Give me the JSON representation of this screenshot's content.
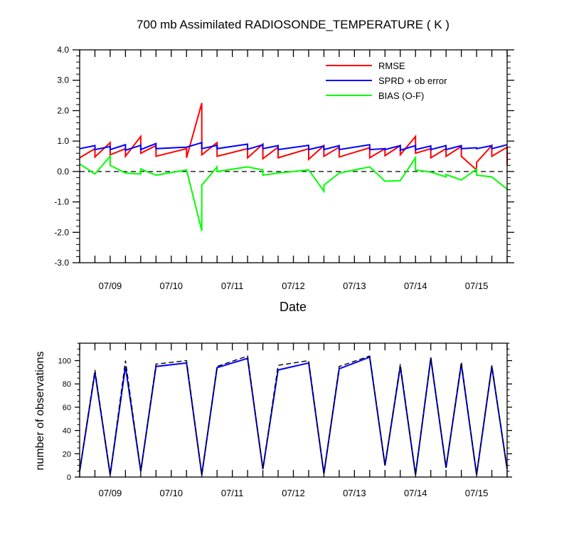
{
  "chart_data": [
    {
      "type": "line",
      "title": "700 mb Assimilated RADIOSONDE_TEMPERATURE ( K )",
      "xlabel": "Date",
      "ylabel": "",
      "x_tick_labels": [
        "07/09",
        "07/10",
        "07/11",
        "07/12",
        "07/13",
        "07/14",
        "07/15"
      ],
      "x_tick_positions": [
        1,
        3,
        5,
        7,
        9,
        11,
        13
      ],
      "xlim": [
        0,
        14
      ],
      "ylim": [
        -3,
        4
      ],
      "y_tick_values": [
        4,
        3,
        2,
        1,
        0,
        -1,
        -2,
        -3
      ],
      "y_tick_labels": [
        "4.0",
        "3.0",
        "2.0",
        "1.0",
        "0.0",
        "-1.0",
        "-2.0",
        "-3.0"
      ],
      "legend_position": "top-right",
      "zero_line": "dashed",
      "series": [
        {
          "name": "RMSE",
          "color": "#ff0000",
          "points": [
            [
              0,
              0.45
            ],
            [
              0.5,
              0.75
            ],
            [
              0.5,
              0.48
            ],
            [
              1,
              0.95
            ],
            [
              1,
              0.55
            ],
            [
              1.5,
              0.75
            ],
            [
              1.5,
              0.5
            ],
            [
              2,
              1.15
            ],
            [
              2,
              0.6
            ],
            [
              2.5,
              0.85
            ],
            [
              2.5,
              0.5
            ],
            [
              3.5,
              0.75
            ],
            [
              3.5,
              0.45
            ],
            [
              4,
              2.25
            ],
            [
              4,
              0.55
            ],
            [
              4.5,
              0.95
            ],
            [
              4.5,
              0.5
            ],
            [
              5.5,
              0.75
            ],
            [
              5.5,
              0.45
            ],
            [
              6,
              0.9
            ],
            [
              6,
              0.42
            ],
            [
              6.5,
              0.8
            ],
            [
              6.5,
              0.45
            ],
            [
              7.5,
              0.75
            ],
            [
              7.5,
              0.4
            ],
            [
              8,
              0.85
            ],
            [
              8,
              0.5
            ],
            [
              8.5,
              0.8
            ],
            [
              8.5,
              0.48
            ],
            [
              9.5,
              0.78
            ],
            [
              9.5,
              0.45
            ],
            [
              10,
              0.75
            ],
            [
              10,
              0.52
            ],
            [
              10.5,
              0.85
            ],
            [
              10.5,
              0.55
            ],
            [
              11,
              1.15
            ],
            [
              11,
              0.6
            ],
            [
              11.5,
              0.75
            ],
            [
              11.5,
              0.45
            ],
            [
              12,
              0.75
            ],
            [
              12,
              0.5
            ],
            [
              12.5,
              0.82
            ],
            [
              12.5,
              0.5
            ],
            [
              13,
              0.05
            ],
            [
              13,
              0.3
            ],
            [
              13.5,
              0.85
            ],
            [
              13.5,
              0.5
            ],
            [
              14,
              0.8
            ],
            [
              14,
              0.2
            ]
          ]
        },
        {
          "name": "SPRD + ob error",
          "color": "#0000ff",
          "points": [
            [
              0,
              0.75
            ],
            [
              0.5,
              0.85
            ],
            [
              0.5,
              0.72
            ],
            [
              1,
              0.82
            ],
            [
              1,
              0.72
            ],
            [
              1.5,
              0.88
            ],
            [
              1.5,
              0.7
            ],
            [
              2,
              0.86
            ],
            [
              2,
              0.72
            ],
            [
              2.5,
              0.92
            ],
            [
              2.5,
              0.75
            ],
            [
              3.5,
              0.8
            ],
            [
              4,
              0.95
            ],
            [
              4,
              0.75
            ],
            [
              4.5,
              0.86
            ],
            [
              4.5,
              0.75
            ],
            [
              5.5,
              0.9
            ],
            [
              5.5,
              0.73
            ],
            [
              6,
              0.88
            ],
            [
              6,
              0.75
            ],
            [
              6.5,
              0.85
            ],
            [
              6.5,
              0.72
            ],
            [
              7.5,
              0.86
            ],
            [
              7.5,
              0.72
            ],
            [
              8,
              0.84
            ],
            [
              8,
              0.72
            ],
            [
              8.5,
              0.85
            ],
            [
              8.5,
              0.72
            ],
            [
              9.5,
              0.88
            ],
            [
              9.5,
              0.72
            ],
            [
              10,
              0.75
            ],
            [
              10,
              0.72
            ],
            [
              10.5,
              0.85
            ],
            [
              10.5,
              0.7
            ],
            [
              11,
              0.85
            ],
            [
              11,
              0.72
            ],
            [
              11.5,
              0.84
            ],
            [
              11.5,
              0.72
            ],
            [
              12,
              0.85
            ],
            [
              12,
              0.72
            ],
            [
              12.5,
              0.85
            ],
            [
              12.5,
              0.75
            ],
            [
              13,
              0.78
            ],
            [
              13,
              0.75
            ],
            [
              13.5,
              0.85
            ],
            [
              13.5,
              0.75
            ],
            [
              14,
              0.88
            ]
          ]
        },
        {
          "name": "BIAS (O-F)",
          "color": "#00ff00",
          "points": [
            [
              0,
              0.25
            ],
            [
              0.5,
              -0.08
            ],
            [
              1,
              0.5
            ],
            [
              1,
              0.2
            ],
            [
              1.5,
              -0.05
            ],
            [
              2,
              -0.08
            ],
            [
              2,
              0.08
            ],
            [
              2.5,
              -0.12
            ],
            [
              3.5,
              0.05
            ],
            [
              4,
              -1.95
            ],
            [
              4,
              -0.45
            ],
            [
              4.5,
              0.15
            ],
            [
              4.5,
              0
            ],
            [
              5.5,
              0.15
            ],
            [
              6,
              0.05
            ],
            [
              6,
              -0.12
            ],
            [
              6.5,
              -0.05
            ],
            [
              7.5,
              0.05
            ],
            [
              8,
              -0.65
            ],
            [
              8,
              -0.45
            ],
            [
              8.5,
              -0.05
            ],
            [
              9.5,
              0.15
            ],
            [
              10,
              -0.32
            ],
            [
              10.5,
              -0.3
            ],
            [
              11,
              0.45
            ],
            [
              11,
              0.05
            ],
            [
              11.5,
              -0.02
            ],
            [
              12,
              -0.18
            ],
            [
              12,
              -0.1
            ],
            [
              12.5,
              -0.28
            ],
            [
              13,
              0.08
            ],
            [
              13,
              -0.12
            ],
            [
              13.5,
              -0.18
            ],
            [
              14,
              -0.58
            ]
          ]
        }
      ]
    },
    {
      "type": "line",
      "title": "",
      "xlabel": "",
      "ylabel": "number of observations",
      "x_tick_labels": [
        "07/09",
        "07/10",
        "07/11",
        "07/12",
        "07/13",
        "07/14",
        "07/15"
      ],
      "x_tick_positions": [
        1,
        3,
        5,
        7,
        9,
        11,
        13
      ],
      "xlim": [
        0,
        14
      ],
      "ylim": [
        0,
        115
      ],
      "y_tick_values": [
        0,
        20,
        40,
        60,
        80,
        100
      ],
      "y_tick_labels": [
        "0",
        "20",
        "40",
        "60",
        "80",
        "100"
      ],
      "series": [
        {
          "color": "#0000ff",
          "style": "solid",
          "points": [
            [
              0,
              5
            ],
            [
              0.5,
              90
            ],
            [
              1,
              2
            ],
            [
              1.5,
              95
            ],
            [
              2,
              5
            ],
            [
              2.5,
              95
            ],
            [
              3.5,
              98
            ],
            [
              4,
              2
            ],
            [
              4.5,
              94
            ],
            [
              5.5,
              102
            ],
            [
              6,
              7
            ],
            [
              6.5,
              92
            ],
            [
              7.5,
              98
            ],
            [
              8,
              3
            ],
            [
              8.5,
              93
            ],
            [
              9.5,
              103
            ],
            [
              10,
              10
            ],
            [
              10.5,
              95
            ],
            [
              11,
              2
            ],
            [
              11.5,
              102
            ],
            [
              12,
              8
            ],
            [
              12.5,
              97
            ],
            [
              13,
              2
            ],
            [
              13.5,
              95
            ],
            [
              14,
              7
            ]
          ]
        },
        {
          "color": "#000000",
          "style": "dashed",
          "points": [
            [
              0,
              5
            ],
            [
              0.5,
              92
            ],
            [
              1,
              2
            ],
            [
              1.5,
              100
            ],
            [
              2,
              5
            ],
            [
              2.5,
              97
            ],
            [
              3.5,
              100
            ],
            [
              4,
              2
            ],
            [
              4.5,
              95
            ],
            [
              5.5,
              104
            ],
            [
              6,
              7
            ],
            [
              6.5,
              96
            ],
            [
              7.5,
              100
            ],
            [
              8,
              3
            ],
            [
              8.5,
              95
            ],
            [
              9.5,
              104
            ],
            [
              10,
              10
            ],
            [
              10.5,
              97
            ],
            [
              11,
              2
            ],
            [
              11.5,
              103
            ],
            [
              12,
              8
            ],
            [
              12.5,
              99
            ],
            [
              13,
              2
            ],
            [
              13.5,
              96
            ],
            [
              14,
              7
            ]
          ]
        }
      ]
    }
  ]
}
